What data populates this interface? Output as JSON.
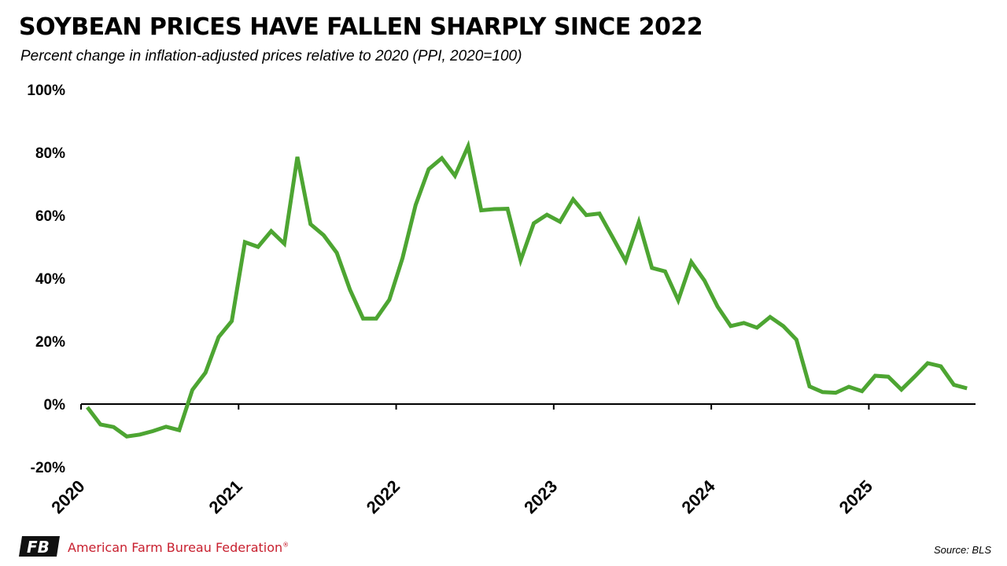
{
  "header": {
    "title": "SOYBEAN PRICES HAVE FALLEN SHARPLY SINCE 2022",
    "subtitle": "Percent change in inflation-adjusted prices relative to 2020 (PPI, 2020=100)"
  },
  "footer": {
    "org_name": "American Farm Bureau Federation",
    "registered_mark": "®",
    "logo_text": "FB",
    "source": "Source: BLS"
  },
  "colors": {
    "line": "#4da532",
    "axis": "#000000",
    "brand_red": "#c8202f"
  },
  "chart_data": {
    "type": "line",
    "title": "SOYBEAN PRICES HAVE FALLEN SHARPLY SINCE 2022",
    "subtitle": "Percent change in inflation-adjusted prices relative to 2020 (PPI, 2020=100)",
    "xlabel": "",
    "ylabel": "",
    "ylim": [
      -20,
      100
    ],
    "yticks": [
      100,
      80,
      60,
      40,
      20,
      0,
      -20
    ],
    "ytick_labels": [
      "100%",
      "80%",
      "60%",
      "40%",
      "20%",
      "0%",
      "-20%"
    ],
    "xticks": [
      "2020",
      "2021",
      "2022",
      "2023",
      "2024",
      "2025"
    ],
    "grid": false,
    "legend": "none",
    "series": [
      {
        "x": [
          "2020-01",
          "2020-02",
          "2020-03",
          "2020-04",
          "2020-05",
          "2020-06",
          "2020-07",
          "2020-08",
          "2020-09",
          "2020-10",
          "2020-11",
          "2020-12",
          "2021-01",
          "2021-02",
          "2021-03",
          "2021-04",
          "2021-05",
          "2021-06",
          "2021-07",
          "2021-08",
          "2021-09",
          "2021-10",
          "2021-11",
          "2021-12",
          "2022-01",
          "2022-02",
          "2022-03",
          "2022-04",
          "2022-05",
          "2022-06",
          "2022-07",
          "2022-08",
          "2022-09",
          "2022-10",
          "2022-11",
          "2022-12",
          "2023-01",
          "2023-02",
          "2023-03",
          "2023-04",
          "2023-05",
          "2023-06",
          "2023-07",
          "2023-08",
          "2023-09",
          "2023-10",
          "2023-11",
          "2023-12",
          "2024-01",
          "2024-02",
          "2024-03",
          "2024-04",
          "2024-05",
          "2024-06",
          "2024-07",
          "2024-08",
          "2024-09",
          "2024-10",
          "2024-11",
          "2024-12",
          "2025-01",
          "2025-02",
          "2025-03",
          "2025-04",
          "2025-05",
          "2025-06",
          "2025-07",
          "2025-08"
        ],
        "values": [
          -1,
          -6.5,
          -7.3,
          -10.3,
          -9.7,
          -8.6,
          -7.2,
          -8.3,
          4.5,
          10,
          21.3,
          26.4,
          51.5,
          50,
          55,
          51,
          78.6,
          57.2,
          53.7,
          48.1,
          36.4,
          27.2,
          27.2,
          33.2,
          46.4,
          63.3,
          74.7,
          78.2,
          72.6,
          82,
          61.6,
          62,
          62.1,
          45.7,
          57.5,
          60.2,
          58,
          65.1,
          60.1,
          60.6,
          53.1,
          45.5,
          57.9,
          43.3,
          42.2,
          33,
          45.2,
          39.3,
          31,
          24.8,
          25.8,
          24.3,
          27.7,
          24.8,
          20.5,
          5.6,
          3.8,
          3.6,
          5.5,
          4.1,
          9,
          8.7,
          4.6,
          8.7,
          13,
          12,
          6.1,
          5
        ]
      }
    ]
  }
}
